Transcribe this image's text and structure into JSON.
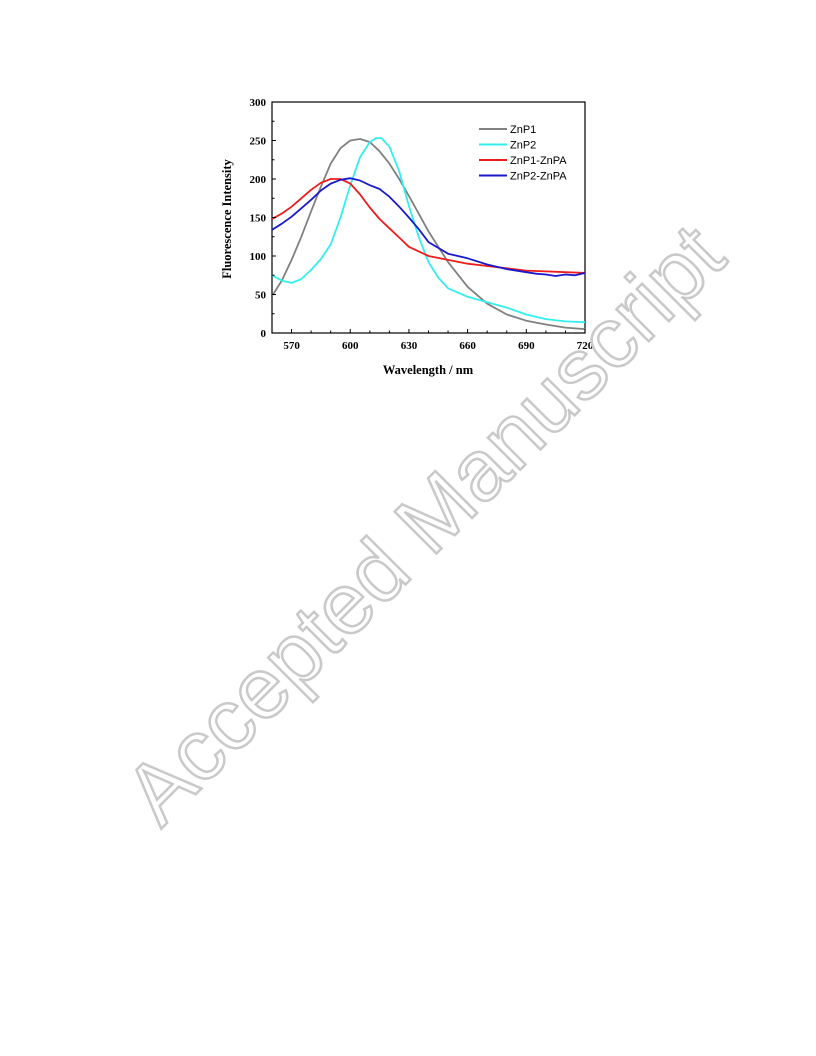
{
  "chart_data": {
    "type": "line",
    "title": "",
    "xlabel": "Wavelength / nm",
    "ylabel": "Fluorescence Intensity",
    "xlim": [
      560,
      720
    ],
    "ylim": [
      0,
      300
    ],
    "xticks": [
      570,
      600,
      630,
      660,
      690,
      720
    ],
    "yticks": [
      0,
      50,
      100,
      150,
      200,
      250,
      300
    ],
    "grid": false,
    "legend_position": "top-right",
    "series": [
      {
        "name": "ZnP1",
        "color": "#808080",
        "x": [
          560,
          565,
          570,
          575,
          580,
          585,
          590,
          595,
          600,
          605,
          610,
          615,
          620,
          625,
          630,
          635,
          640,
          645,
          650,
          660,
          670,
          680,
          690,
          700,
          710,
          720
        ],
        "y": [
          48,
          68,
          95,
          125,
          158,
          190,
          220,
          240,
          250,
          252,
          248,
          236,
          220,
          200,
          178,
          155,
          132,
          112,
          92,
          60,
          38,
          24,
          16,
          11,
          7,
          5
        ]
      },
      {
        "name": "ZnP2",
        "color": "#33eeee",
        "x": [
          560,
          565,
          570,
          575,
          580,
          585,
          590,
          595,
          600,
          605,
          610,
          613,
          616,
          620,
          625,
          630,
          635,
          640,
          645,
          650,
          660,
          670,
          680,
          690,
          700,
          710,
          720
        ],
        "y": [
          75,
          68,
          65,
          70,
          82,
          96,
          115,
          150,
          192,
          228,
          248,
          253,
          253,
          242,
          210,
          165,
          125,
          92,
          72,
          58,
          47,
          40,
          33,
          24,
          18,
          15,
          14
        ]
      },
      {
        "name": "ZnP1-ZnPA",
        "color": "#ee1c1c",
        "x": [
          560,
          565,
          570,
          575,
          580,
          585,
          590,
          595,
          600,
          605,
          610,
          615,
          620,
          625,
          630,
          640,
          650,
          660,
          670,
          680,
          690,
          700,
          710,
          720
        ],
        "y": [
          148,
          155,
          164,
          175,
          186,
          195,
          200,
          200,
          194,
          180,
          163,
          148,
          136,
          124,
          112,
          100,
          95,
          90,
          87,
          84,
          81,
          80,
          79,
          78
        ]
      },
      {
        "name": "ZnP2-ZnPA",
        "color": "#1a1acc",
        "x": [
          560,
          565,
          570,
          575,
          580,
          585,
          590,
          595,
          600,
          605,
          610,
          615,
          620,
          625,
          630,
          635,
          640,
          650,
          660,
          670,
          680,
          690,
          695,
          700,
          705,
          710,
          715,
          720
        ],
        "y": [
          134,
          142,
          151,
          162,
          173,
          185,
          194,
          199,
          201,
          198,
          192,
          187,
          177,
          164,
          150,
          135,
          118,
          103,
          97,
          89,
          83,
          79,
          77,
          76,
          74,
          76,
          75,
          78
        ]
      }
    ]
  },
  "watermark": "Accepted Manuscript"
}
